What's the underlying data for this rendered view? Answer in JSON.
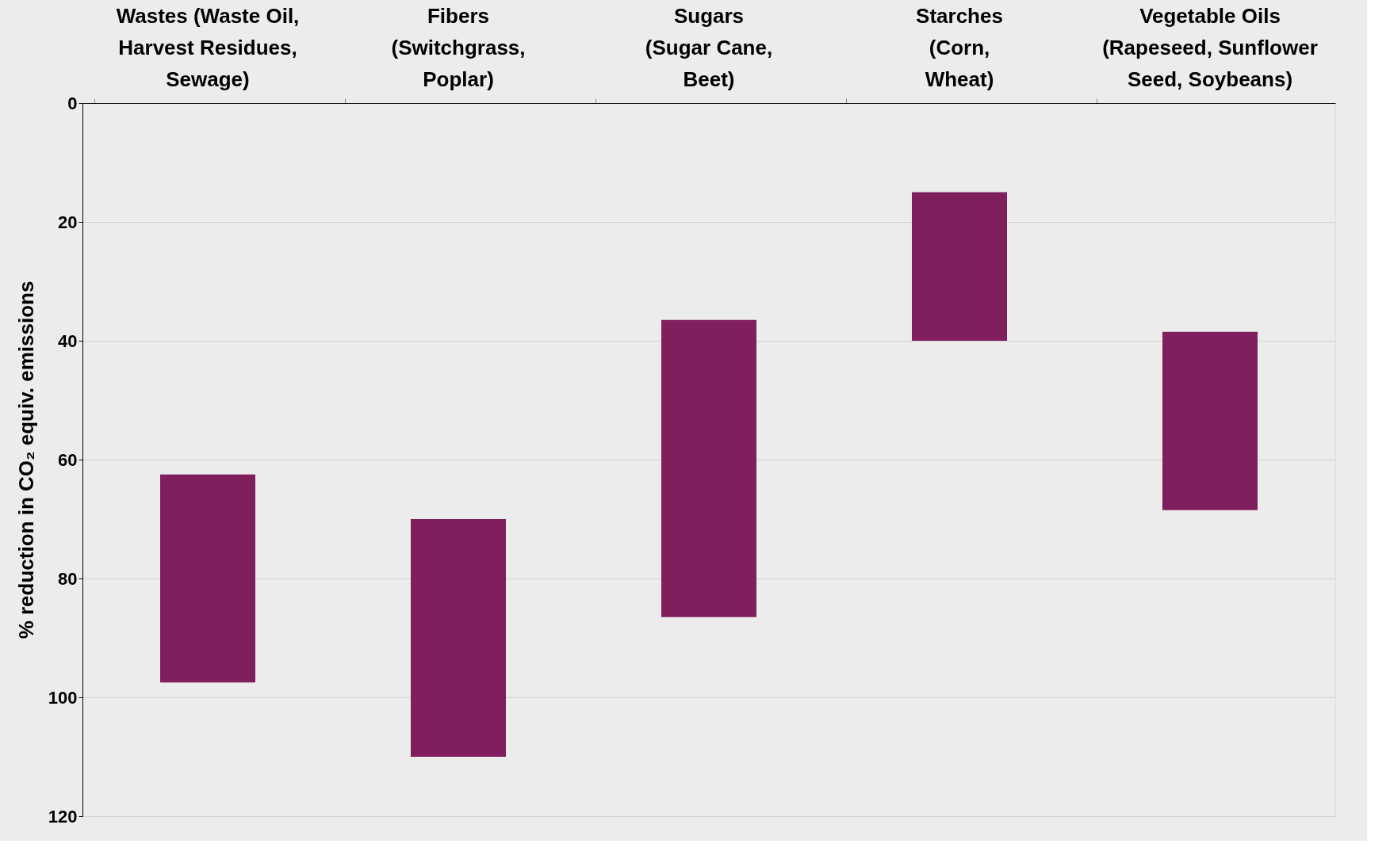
{
  "chart_data": {
    "type": "bar",
    "categories": [
      "Wastes (Waste Oil,\nHarvest Residues,\nSewage)",
      "Fibers\n(Switchgrass,\nPoplar)",
      "Sugars\n(Sugar Cane,\nBeet)",
      "Starches\n(Corn,\nWheat)",
      "Vegetable Oils\n(Rapeseed, Sunflower\nSeed, Soybeans)"
    ],
    "base": [
      62.5,
      70,
      36.5,
      15,
      38.5
    ],
    "values": [
      35,
      40,
      50,
      25,
      30
    ],
    "color": "#7f1f5e",
    "ylabel": "% reduction in CO₂ equiv. emissions",
    "ylim": [
      120,
      0
    ],
    "yticks": [
      0,
      20,
      40,
      60,
      80,
      100,
      120
    ],
    "grid": "y"
  }
}
